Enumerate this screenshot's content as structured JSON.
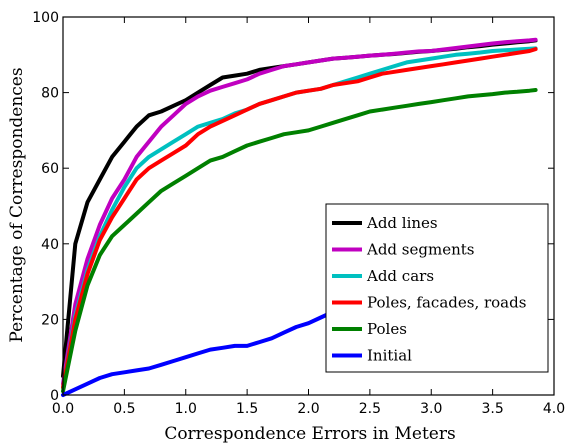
{
  "chart_data": {
    "type": "line",
    "xlabel": "Correspondence Errors in Meters",
    "ylabel": "Percentage of Correspondences",
    "xlim": [
      0,
      4
    ],
    "ylim": [
      0,
      100
    ],
    "xticks": [
      "0.0",
      "0.5",
      "1.0",
      "1.5",
      "2.0",
      "2.5",
      "3.0",
      "3.5",
      "4.0"
    ],
    "yticks": [
      "0",
      "20",
      "40",
      "60",
      "80",
      "100"
    ],
    "grid": false,
    "legend_position": "lower-right",
    "x": [
      0.0,
      0.1,
      0.2,
      0.3,
      0.4,
      0.5,
      0.6,
      0.7,
      0.8,
      0.9,
      1.0,
      1.1,
      1.2,
      1.3,
      1.4,
      1.5,
      1.6,
      1.7,
      1.8,
      1.9,
      2.0,
      2.1,
      2.2,
      2.3,
      2.4,
      2.5,
      2.6,
      2.7,
      2.8,
      2.9,
      3.0,
      3.1,
      3.2,
      3.3,
      3.4,
      3.5,
      3.6,
      3.7,
      3.8,
      3.85
    ],
    "series": [
      {
        "name": "Add lines",
        "color": "#000000",
        "values": [
          5,
          40,
          51,
          57,
          63,
          67,
          71,
          74,
          75,
          76.5,
          78,
          80,
          82,
          84,
          84.5,
          85,
          86,
          86.5,
          87,
          87.5,
          88,
          88.5,
          89,
          89.2,
          89.5,
          89.8,
          90,
          90.2,
          90.5,
          90.8,
          91,
          91.3,
          91.6,
          92,
          92.3,
          92.7,
          93,
          93.3,
          93.6,
          93.8
        ]
      },
      {
        "name": "Add segments",
        "color": "#c000c0",
        "values": [
          3,
          24,
          36,
          45,
          52,
          57,
          63,
          67,
          71,
          74,
          77,
          79,
          80.5,
          81.5,
          82.5,
          83.5,
          85,
          86,
          87,
          87.5,
          88,
          88.5,
          89,
          89.2,
          89.5,
          89.8,
          90,
          90.3,
          90.6,
          90.9,
          91,
          91.4,
          91.8,
          92.2,
          92.6,
          93,
          93.3,
          93.6,
          93.8,
          94
        ]
      },
      {
        "name": "Add cars",
        "color": "#00c0c0",
        "values": [
          2,
          21,
          33,
          42,
          49,
          55,
          60,
          63,
          65,
          67,
          69,
          71,
          72,
          73,
          74.5,
          75.5,
          77,
          78,
          79,
          80,
          80.5,
          81,
          82,
          83,
          84,
          85,
          86,
          87,
          88,
          88.5,
          89,
          89.5,
          90,
          90.3,
          90.6,
          91,
          91.2,
          91.4,
          91.6,
          91.7
        ]
      },
      {
        "name": "Poles, facades, roads",
        "color": "#ff0000",
        "values": [
          2,
          20,
          32,
          41,
          47,
          52,
          57,
          60,
          62,
          64,
          66,
          69,
          71,
          72.5,
          74,
          75.5,
          77,
          78,
          79,
          80,
          80.5,
          81,
          82,
          82.5,
          83,
          84,
          85,
          85.5,
          86,
          86.5,
          87,
          87.5,
          88,
          88.5,
          89,
          89.5,
          90,
          90.5,
          91,
          91.5
        ]
      },
      {
        "name": "Poles",
        "color": "#008000",
        "values": [
          1,
          17,
          29,
          37,
          42,
          45,
          48,
          51,
          54,
          56,
          58,
          60,
          62,
          63,
          64.5,
          66,
          67,
          68,
          69,
          69.5,
          70,
          71,
          72,
          73,
          74,
          75,
          75.5,
          76,
          76.5,
          77,
          77.5,
          78,
          78.5,
          79,
          79.3,
          79.6,
          80,
          80.2,
          80.5,
          80.7
        ]
      },
      {
        "name": "Initial",
        "color": "#0000ff",
        "values": [
          0,
          1.5,
          3,
          4.5,
          5.5,
          6,
          6.5,
          7,
          8,
          9,
          10,
          11,
          12,
          12.5,
          13,
          13,
          14,
          15,
          16.5,
          18,
          19,
          20.5,
          22,
          23.5,
          25,
          27,
          29,
          30.5,
          32,
          33.5,
          35,
          36.5,
          38,
          40,
          41.5,
          43,
          44.5,
          46,
          47.5,
          48.5
        ]
      }
    ]
  }
}
